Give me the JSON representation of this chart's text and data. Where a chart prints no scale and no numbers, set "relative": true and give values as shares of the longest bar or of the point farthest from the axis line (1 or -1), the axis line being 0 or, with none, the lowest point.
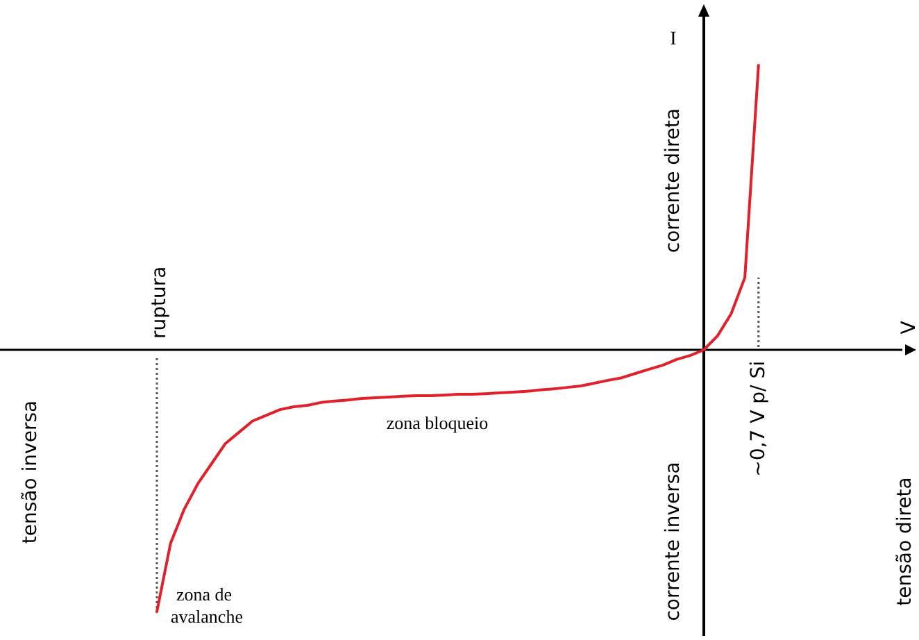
{
  "chart_data": {
    "type": "line",
    "relative": true,
    "ylabel": "I",
    "categories": [
      null,
      null,
      null,
      null,
      null,
      null,
      null,
      null,
      null,
      null,
      null,
      null,
      null,
      null,
      null,
      null,
      null,
      null,
      null,
      null,
      null,
      null,
      null,
      null,
      null,
      null,
      null,
      null,
      null,
      null,
      null,
      null,
      null,
      null,
      null,
      null,
      null,
      null,
      null,
      null,
      null,
      null,
      null,
      null,
      null
    ],
    "series": [
      {
        "color": "#e0202a",
        "values": [
          -0.92,
          -0.68,
          -0.56,
          -0.47,
          -0.4,
          -0.33,
          -0.29,
          -0.25,
          -0.23,
          -0.21,
          -0.2,
          -0.195,
          -0.185,
          -0.18,
          -0.176,
          -0.171,
          -0.168,
          -0.166,
          -0.163,
          -0.161,
          -0.161,
          -0.159,
          -0.156,
          -0.156,
          -0.154,
          -0.151,
          -0.149,
          -0.146,
          -0.141,
          -0.137,
          -0.132,
          -0.127,
          -0.117,
          -0.107,
          -0.098,
          -0.083,
          -0.068,
          -0.054,
          -0.034,
          -0.02,
          0,
          0.049,
          0.127,
          0.254,
          1
        ]
      }
    ],
    "annotations": [
      "tensão inversa",
      "tensão direta",
      "corrente direta",
      "corrente inversa",
      "ruptura",
      "~0,7 V p/ Si",
      "zona bloqueio",
      "zona de avalanche",
      "V"
    ]
  }
}
